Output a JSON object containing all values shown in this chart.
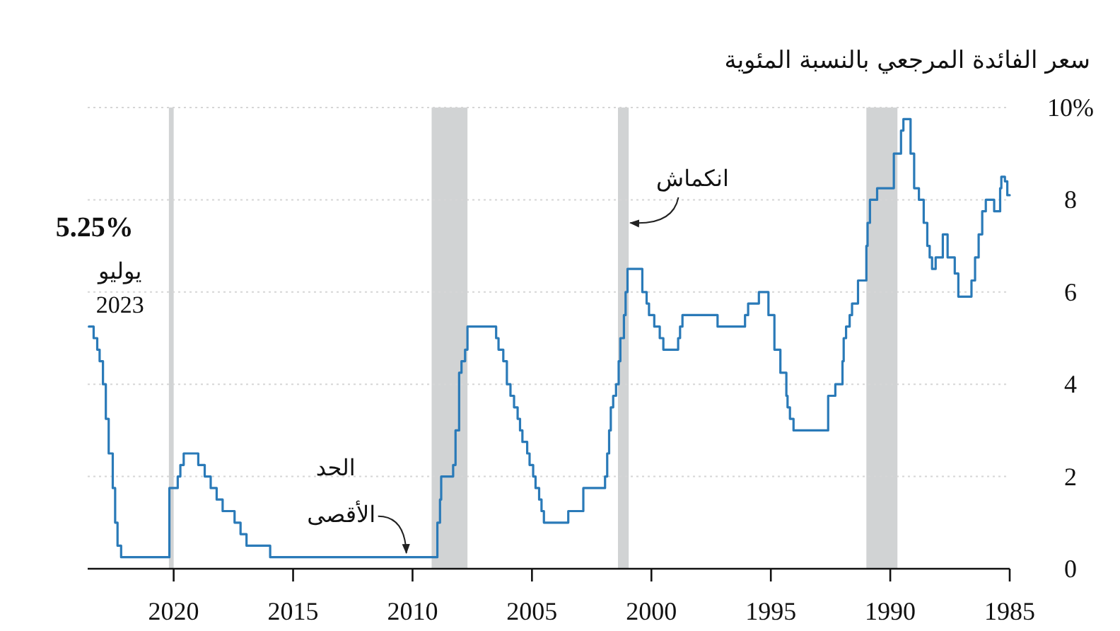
{
  "chart_data": {
    "type": "step",
    "subtitle": "سعر الفائدة المرجعي بالنسبة المئوية",
    "xlim": [
      2023.6,
      1985
    ],
    "xticks": [
      2020,
      2015,
      2010,
      2005,
      2000,
      1995,
      1990,
      1985
    ],
    "ylim": [
      0,
      10
    ],
    "yticks": [
      0,
      2,
      4,
      6,
      8,
      {
        "value": 10,
        "label": "10%"
      }
    ],
    "grid": "y",
    "series": [
      {
        "color": "#2a7ab8",
        "x": [
          1985.0,
          1985.1,
          1985.2,
          1985.35,
          1985.4,
          1985.65,
          1986.0,
          1986.15,
          1986.3,
          1986.45,
          1986.6,
          1987.15,
          1987.3,
          1987.6,
          1987.8,
          1988.1,
          1988.25,
          1988.35,
          1988.45,
          1988.6,
          1988.8,
          1989.0,
          1989.15,
          1989.45,
          1989.55,
          1989.85,
          1990.55,
          1990.85,
          1990.95,
          1991.0,
          1991.35,
          1991.6,
          1991.7,
          1991.85,
          1991.95,
          1992.0,
          1992.3,
          1992.6,
          1994.05,
          1994.2,
          1994.3,
          1994.35,
          1994.6,
          1994.85,
          1995.1,
          1995.5,
          1995.95,
          1996.08,
          1997.23,
          1998.7,
          1998.8,
          1998.88,
          1999.5,
          1999.65,
          1999.88,
          2000.1,
          2000.2,
          2000.38,
          2001.0,
          2001.08,
          2001.15,
          2001.3,
          2001.37,
          2001.48,
          2001.6,
          2001.7,
          2001.77,
          2001.85,
          2001.94,
          2002.85,
          2003.48,
          2004.5,
          2004.6,
          2004.7,
          2004.85,
          2004.95,
          2005.1,
          2005.2,
          2005.4,
          2005.5,
          2005.6,
          2005.75,
          2005.9,
          2006.05,
          2006.2,
          2006.4,
          2006.5,
          2007.7,
          2007.8,
          2007.95,
          2008.05,
          2008.2,
          2008.3,
          2008.8,
          2008.85,
          2008.96,
          2015.96,
          2016.95,
          2017.2,
          2017.45,
          2017.95,
          2018.2,
          2018.45,
          2018.7,
          2018.97,
          2019.58,
          2019.72,
          2019.83,
          2020.18,
          2022.2,
          2022.35,
          2022.45,
          2022.55,
          2022.72,
          2022.84,
          2022.96,
          2023.1,
          2023.2,
          2023.35,
          2023.55
        ],
        "values": [
          8.1,
          8.4,
          8.5,
          8.25,
          7.75,
          8.0,
          7.75,
          7.25,
          6.75,
          6.25,
          5.9,
          6.4,
          6.75,
          7.25,
          6.75,
          6.5,
          6.75,
          7.0,
          7.5,
          8.0,
          8.25,
          9.0,
          9.75,
          9.5,
          9.0,
          8.25,
          8.0,
          7.5,
          7.0,
          6.25,
          5.75,
          5.5,
          5.25,
          5.0,
          4.5,
          4.0,
          3.75,
          3.0,
          3.25,
          3.5,
          3.75,
          4.25,
          4.75,
          5.5,
          6.0,
          5.75,
          5.5,
          5.25,
          5.5,
          5.25,
          5.0,
          4.75,
          5.0,
          5.25,
          5.5,
          5.75,
          6.0,
          6.5,
          6.0,
          5.5,
          5.0,
          4.5,
          4.0,
          3.75,
          3.5,
          3.0,
          2.5,
          2.0,
          1.75,
          1.25,
          1.0,
          1.25,
          1.5,
          1.75,
          2.0,
          2.25,
          2.5,
          2.75,
          3.0,
          3.25,
          3.5,
          3.75,
          4.0,
          4.5,
          4.75,
          5.0,
          5.25,
          4.75,
          4.5,
          4.25,
          3.0,
          2.25,
          2.0,
          1.5,
          1.0,
          0.25,
          0.5,
          0.75,
          1.0,
          1.25,
          1.5,
          1.75,
          2.0,
          2.25,
          2.5,
          2.25,
          2.0,
          1.75,
          0.25,
          0.5,
          1.0,
          1.75,
          2.5,
          3.25,
          4.0,
          4.5,
          4.75,
          5.0,
          5.25,
          5.25
        ]
      }
    ],
    "bands": [
      {
        "axis": "x",
        "from": 2020.0,
        "to": 2020.2,
        "color": "#d1d3d4"
      },
      {
        "axis": "x",
        "from": 2007.7,
        "to": 2009.2,
        "color": "#d1d3d4"
      },
      {
        "axis": "x",
        "from": 2000.95,
        "to": 2001.4,
        "color": "#d1d3d4"
      },
      {
        "axis": "x",
        "from": 1989.7,
        "to": 1991.0,
        "color": "#d1d3d4"
      }
    ],
    "annotations": [
      {
        "text": "5.25%",
        "x": 2023.55,
        "y": 5.25
      },
      {
        "text": "يوليو",
        "x": 2023.55,
        "y": 5.25
      },
      {
        "text": "2023",
        "x": 2023.55,
        "y": 5.25
      },
      {
        "text": "انكماش",
        "x": 2001.0,
        "y": 7.5
      },
      "الحد",
      {
        "text": "الأقصى",
        "x": 2010.2,
        "y": 0.25
      }
    ]
  }
}
